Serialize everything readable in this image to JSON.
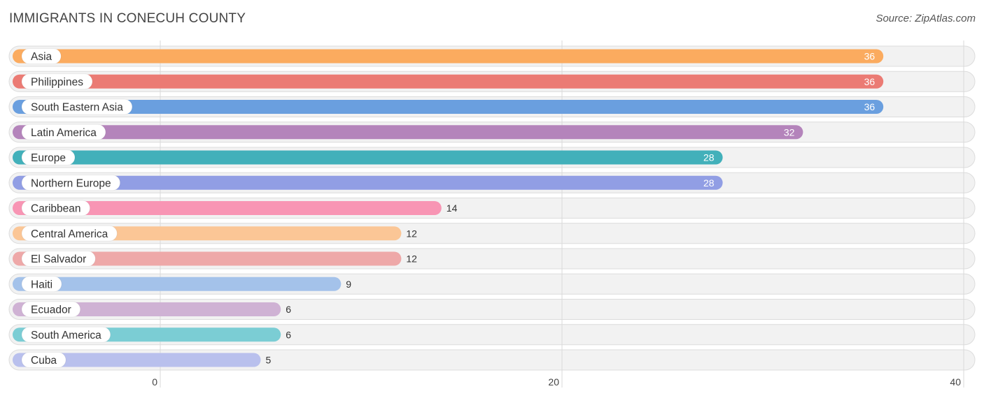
{
  "header": {
    "title": "IMMIGRANTS IN CONECUH COUNTY",
    "source": "Source: ZipAtlas.com"
  },
  "chart_data": {
    "type": "bar",
    "orientation": "horizontal",
    "title": "IMMIGRANTS IN CONECUH COUNTY",
    "xlabel": "",
    "ylabel": "",
    "xlim": [
      0,
      40
    ],
    "ticks": [
      0,
      20,
      40
    ],
    "grid": true,
    "categories": [
      "Asia",
      "Philippines",
      "South Eastern Asia",
      "Latin America",
      "Europe",
      "Northern Europe",
      "Caribbean",
      "Central America",
      "El Salvador",
      "Haiti",
      "Ecuador",
      "South America",
      "Cuba"
    ],
    "values": [
      36,
      36,
      36,
      32,
      28,
      28,
      14,
      12,
      12,
      9,
      6,
      6,
      5
    ],
    "colors": [
      "#fbab5f",
      "#eb7b74",
      "#6a9fdf",
      "#b484bb",
      "#42b0ba",
      "#919ee4",
      "#f895b4",
      "#fbc696",
      "#eea8a8",
      "#a4c2ea",
      "#cfb2d4",
      "#7bcdd4",
      "#b9c0ed"
    ]
  }
}
